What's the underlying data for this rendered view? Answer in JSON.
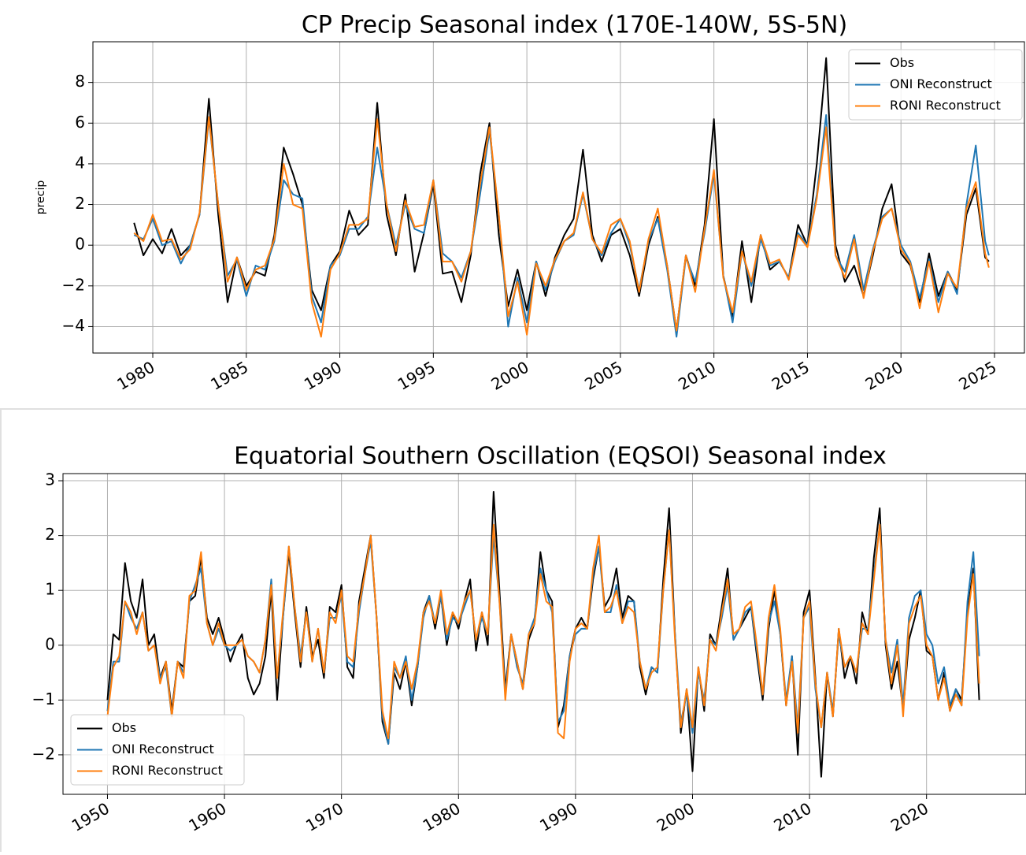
{
  "chart_data": [
    {
      "type": "line",
      "title": "CP Precip Seasonal index (170E-140W, 5S-5N)",
      "y_label": "precip",
      "xlim": [
        1976.8,
        2026.6
      ],
      "ylim": [
        -5.3,
        10.0
      ],
      "xticks": [
        1980,
        1985,
        1990,
        1995,
        2000,
        2005,
        2010,
        2015,
        2020,
        2025
      ],
      "yticks": [
        {
          "value": -4,
          "label": "−4"
        },
        {
          "value": -2,
          "label": "−2"
        },
        0,
        2,
        4,
        6,
        8
      ],
      "grid": true,
      "legend": "upper right",
      "x": [
        1979.0,
        1979.5,
        1980.0,
        1980.5,
        1981.0,
        1981.5,
        1982.0,
        1982.5,
        1983.0,
        1983.5,
        1984.0,
        1984.5,
        1985.0,
        1985.5,
        1986.0,
        1986.5,
        1987.0,
        1987.5,
        1988.0,
        1988.5,
        1989.0,
        1989.5,
        1990.0,
        1990.5,
        1991.0,
        1991.5,
        1992.0,
        1992.5,
        1993.0,
        1993.5,
        1994.0,
        1994.5,
        1995.0,
        1995.5,
        1996.0,
        1996.5,
        1997.0,
        1997.5,
        1998.0,
        1998.5,
        1999.0,
        1999.5,
        2000.0,
        2000.5,
        2001.0,
        2001.5,
        2002.0,
        2002.5,
        2003.0,
        2003.5,
        2004.0,
        2004.5,
        2005.0,
        2005.5,
        2006.0,
        2006.5,
        2007.0,
        2007.5,
        2008.0,
        2008.5,
        2009.0,
        2009.5,
        2010.0,
        2010.5,
        2011.0,
        2011.5,
        2012.0,
        2012.5,
        2013.0,
        2013.5,
        2014.0,
        2014.5,
        2015.0,
        2015.5,
        2016.0,
        2016.5,
        2017.0,
        2017.5,
        2018.0,
        2018.5,
        2019.0,
        2019.5,
        2020.0,
        2020.5,
        2021.0,
        2021.5,
        2022.0,
        2022.5,
        2023.0,
        2023.5,
        2024.0,
        2024.5,
        2024.7
      ],
      "series": [
        {
          "name": "Obs",
          "color": "#000000",
          "values": [
            1.1,
            -0.5,
            0.3,
            -0.4,
            0.8,
            -0.5,
            0.0,
            1.5,
            7.2,
            1.5,
            -2.8,
            -0.6,
            -2.0,
            -1.3,
            -1.5,
            0.5,
            4.8,
            3.5,
            2.0,
            -2.2,
            -3.2,
            -1.0,
            -0.3,
            1.7,
            0.5,
            1.0,
            7.0,
            1.5,
            -0.5,
            2.5,
            -1.3,
            0.6,
            3.0,
            -1.4,
            -1.3,
            -2.8,
            -0.5,
            3.5,
            6.0,
            0.5,
            -3.0,
            -1.2,
            -3.2,
            -0.8,
            -2.5,
            -0.6,
            0.5,
            1.3,
            4.7,
            0.5,
            -0.8,
            0.5,
            0.8,
            -0.5,
            -2.5,
            0.0,
            1.4,
            -1.0,
            -4.2,
            -0.5,
            -2.0,
            1.0,
            6.2,
            -1.5,
            -3.5,
            0.2,
            -2.8,
            0.5,
            -1.2,
            -0.8,
            -1.6,
            1.0,
            0.0,
            4.0,
            9.2,
            0.0,
            -1.8,
            -1.0,
            -2.5,
            -0.5,
            1.8,
            3.0,
            -0.4,
            -1.0,
            -2.8,
            -0.4,
            -2.5,
            -1.3,
            -2.2,
            1.5,
            2.8,
            -0.6,
            -0.8
          ]
        },
        {
          "name": "ONI Reconstruct",
          "color": "#1f77b4",
          "values": [
            0.5,
            0.3,
            1.3,
            0.0,
            0.2,
            -0.9,
            0.0,
            1.5,
            6.2,
            2.0,
            -1.5,
            -0.7,
            -2.5,
            -1.0,
            -1.2,
            0.2,
            3.2,
            2.5,
            2.3,
            -2.5,
            -3.8,
            -1.0,
            -0.5,
            0.8,
            0.8,
            1.4,
            4.8,
            2.0,
            0.0,
            2.0,
            0.8,
            0.6,
            3.2,
            -0.4,
            -0.8,
            -1.6,
            -0.3,
            2.5,
            5.6,
            1.5,
            -4.0,
            -1.6,
            -3.8,
            -0.8,
            -2.2,
            -0.8,
            0.2,
            0.5,
            2.5,
            0.3,
            -0.5,
            0.6,
            1.3,
            0.0,
            -2.2,
            0.2,
            1.3,
            -1.2,
            -4.5,
            -0.6,
            -1.8,
            0.6,
            3.5,
            -1.5,
            -3.8,
            -0.3,
            -2.0,
            0.3,
            -1.0,
            -0.8,
            -1.6,
            0.6,
            0.0,
            2.5,
            6.4,
            -0.5,
            -1.3,
            0.5,
            -2.2,
            -0.2,
            1.4,
            1.8,
            0.0,
            -0.8,
            -2.6,
            -0.7,
            -2.8,
            -1.3,
            -2.4,
            2.0,
            4.9,
            0.2,
            -0.5
          ]
        },
        {
          "name": "RONI Reconstruct",
          "color": "#ff7f0e",
          "values": [
            0.6,
            0.2,
            1.5,
            0.2,
            0.3,
            -0.7,
            -0.2,
            1.6,
            6.3,
            2.0,
            -1.8,
            -0.6,
            -2.2,
            -1.2,
            -1.0,
            0.3,
            4.0,
            2.0,
            1.8,
            -2.8,
            -4.5,
            -1.2,
            -0.4,
            1.0,
            1.0,
            1.3,
            6.2,
            2.0,
            -0.3,
            2.2,
            0.9,
            1.0,
            3.2,
            -0.8,
            -0.8,
            -1.8,
            -0.3,
            3.0,
            5.8,
            1.5,
            -3.5,
            -1.8,
            -4.4,
            -0.9,
            -2.0,
            -0.7,
            0.2,
            0.6,
            2.6,
            0.3,
            -0.4,
            1.0,
            1.3,
            0.2,
            -2.3,
            0.3,
            1.8,
            -1.0,
            -4.2,
            -0.5,
            -2.3,
            0.8,
            3.7,
            -1.6,
            -3.3,
            -0.3,
            -1.8,
            0.5,
            -0.9,
            -0.7,
            -1.7,
            0.5,
            -0.1,
            2.3,
            5.8,
            -0.5,
            -1.6,
            0.3,
            -2.6,
            -0.3,
            1.3,
            1.8,
            -0.2,
            -0.9,
            -3.1,
            -0.8,
            -3.3,
            -1.4,
            -2.1,
            1.8,
            3.1,
            -0.4,
            -1.1
          ]
        }
      ]
    },
    {
      "type": "line",
      "title": "Equatorial Southern Oscillation (EQSOI) Seasonal index",
      "xlim": [
        1946.2,
        2028.5
      ],
      "ylim": [
        -2.72,
        3.13
      ],
      "xticks": [
        1950,
        1960,
        1970,
        1980,
        1990,
        2000,
        2010,
        2020
      ],
      "yticks": [
        {
          "value": -2,
          "label": "−2"
        },
        {
          "value": -1,
          "label": "−1"
        },
        0,
        1,
        2,
        3
      ],
      "grid": true,
      "legend": "lower left",
      "x": [
        1950.0,
        1950.5,
        1951.0,
        1951.5,
        1952.0,
        1952.5,
        1953.0,
        1953.5,
        1954.0,
        1954.5,
        1955.0,
        1955.5,
        1956.0,
        1956.5,
        1957.0,
        1957.5,
        1958.0,
        1958.5,
        1959.0,
        1959.5,
        1960.0,
        1960.5,
        1961.0,
        1961.5,
        1962.0,
        1962.5,
        1963.0,
        1963.5,
        1964.0,
        1964.5,
        1965.0,
        1965.5,
        1966.0,
        1966.5,
        1967.0,
        1967.5,
        1968.0,
        1968.5,
        1969.0,
        1969.5,
        1970.0,
        1970.5,
        1971.0,
        1971.5,
        1972.0,
        1972.5,
        1973.0,
        1973.5,
        1974.0,
        1974.5,
        1975.0,
        1975.5,
        1976.0,
        1976.5,
        1977.0,
        1977.5,
        1978.0,
        1978.5,
        1979.0,
        1979.5,
        1980.0,
        1980.5,
        1981.0,
        1981.5,
        1982.0,
        1982.5,
        1983.0,
        1983.5,
        1984.0,
        1984.5,
        1985.0,
        1985.5,
        1986.0,
        1986.5,
        1987.0,
        1987.5,
        1988.0,
        1988.5,
        1989.0,
        1989.5,
        1990.0,
        1990.5,
        1991.0,
        1991.5,
        1992.0,
        1992.5,
        1993.0,
        1993.5,
        1994.0,
        1994.5,
        1995.0,
        1995.5,
        1996.0,
        1996.5,
        1997.0,
        1997.5,
        1998.0,
        1998.5,
        1999.0,
        1999.5,
        2000.0,
        2000.5,
        2001.0,
        2001.5,
        2002.0,
        2002.5,
        2003.0,
        2003.5,
        2004.0,
        2004.5,
        2005.0,
        2005.5,
        2006.0,
        2006.5,
        2007.0,
        2007.5,
        2008.0,
        2008.5,
        2009.0,
        2009.5,
        2010.0,
        2010.5,
        2011.0,
        2011.5,
        2012.0,
        2012.5,
        2013.0,
        2013.5,
        2014.0,
        2014.5,
        2015.0,
        2015.5,
        2016.0,
        2016.5,
        2017.0,
        2017.5,
        2018.0,
        2018.5,
        2019.0,
        2019.5,
        2020.0,
        2020.5,
        2021.0,
        2021.5,
        2022.0,
        2022.5,
        2023.0,
        2023.5,
        2024.0,
        2024.5
      ],
      "series": [
        {
          "name": "Obs",
          "color": "#000000",
          "values": [
            -1.0,
            0.2,
            0.1,
            1.5,
            0.8,
            0.5,
            1.2,
            0.0,
            0.2,
            -0.6,
            -0.3,
            -1.2,
            -0.3,
            -0.4,
            0.8,
            0.9,
            1.6,
            0.5,
            0.2,
            0.5,
            0.1,
            -0.3,
            0.0,
            0.2,
            -0.6,
            -0.9,
            -0.7,
            -0.2,
            1.0,
            -1.0,
            0.5,
            1.7,
            0.6,
            -0.4,
            0.7,
            -0.2,
            0.1,
            -0.6,
            0.7,
            0.6,
            1.1,
            -0.4,
            -0.6,
            0.8,
            1.4,
            2.0,
            0.5,
            -1.4,
            -1.8,
            -0.5,
            -0.8,
            -0.3,
            -1.1,
            -0.4,
            0.6,
            0.9,
            0.3,
            0.9,
            0.0,
            0.6,
            0.3,
            0.8,
            1.2,
            -0.1,
            0.6,
            0.0,
            2.8,
            1.0,
            -0.8,
            0.2,
            -0.3,
            -0.8,
            0.1,
            0.4,
            1.7,
            1.0,
            0.8,
            -1.5,
            -1.1,
            -0.2,
            0.3,
            0.5,
            0.3,
            1.2,
            1.8,
            0.7,
            0.9,
            1.4,
            0.5,
            0.9,
            0.8,
            -0.4,
            -0.9,
            -0.4,
            -0.5,
            1.2,
            2.5,
            0.2,
            -1.6,
            -0.8,
            -2.3,
            -0.4,
            -1.2,
            0.2,
            0.0,
            0.7,
            1.4,
            0.1,
            0.3,
            0.5,
            0.7,
            -0.2,
            -1.0,
            0.3,
            1.0,
            0.2,
            -1.1,
            -0.2,
            -2.0,
            0.6,
            1.0,
            -0.6,
            -2.4,
            -0.5,
            -1.3,
            0.3,
            -0.6,
            -0.2,
            -0.7,
            0.6,
            0.2,
            1.6,
            2.5,
            0.0,
            -0.8,
            -0.3,
            -1.2,
            0.1,
            0.5,
            1.0,
            -0.1,
            -0.2,
            -1.0,
            -0.5,
            -1.2,
            -0.8,
            -1.0,
            0.6,
            1.4,
            -1.0
          ]
        },
        {
          "name": "ONI Reconstruct",
          "color": "#1f77b4",
          "values": [
            -1.2,
            -0.3,
            -0.3,
            0.8,
            0.5,
            0.3,
            0.6,
            -0.1,
            0.0,
            -0.6,
            -0.4,
            -1.3,
            -0.3,
            -0.5,
            0.8,
            1.1,
            1.4,
            0.4,
            0.0,
            0.3,
            0.0,
            -0.1,
            0.0,
            0.1,
            -0.2,
            -0.3,
            -0.5,
            0.1,
            1.2,
            -0.6,
            0.5,
            1.8,
            0.7,
            -0.2,
            0.6,
            -0.3,
            0.3,
            -0.5,
            0.5,
            0.5,
            0.9,
            -0.3,
            -0.4,
            0.6,
            1.3,
            1.9,
            0.5,
            -1.3,
            -1.8,
            -0.4,
            -0.6,
            -0.2,
            -1.0,
            -0.4,
            0.5,
            0.9,
            0.4,
            0.9,
            0.1,
            0.5,
            0.4,
            0.7,
            1.0,
            0.1,
            0.5,
            0.2,
            2.0,
            0.8,
            -0.9,
            0.2,
            -0.4,
            -0.7,
            0.2,
            0.5,
            1.4,
            1.0,
            0.6,
            -1.4,
            -1.2,
            -0.2,
            0.2,
            0.3,
            0.3,
            1.3,
            1.8,
            0.6,
            0.6,
            1.1,
            0.4,
            0.8,
            0.8,
            -0.3,
            -0.8,
            -0.4,
            -0.5,
            1.0,
            2.1,
            0.2,
            -1.4,
            -0.9,
            -1.6,
            -0.5,
            -1.0,
            0.1,
            0.0,
            0.5,
            1.1,
            0.1,
            0.3,
            0.6,
            0.7,
            -0.1,
            -0.9,
            0.4,
            0.8,
            0.2,
            -1.0,
            -0.2,
            -1.5,
            0.5,
            0.7,
            -0.8,
            -1.5,
            -0.5,
            -1.2,
            0.2,
            -0.4,
            -0.2,
            -0.5,
            0.3,
            0.3,
            1.3,
            2.2,
            0.1,
            -0.5,
            0.1,
            -1.1,
            0.5,
            0.9,
            1.0,
            0.2,
            0.0,
            -0.7,
            -0.4,
            -1.1,
            -0.8,
            -1.1,
            0.8,
            1.7,
            -0.2
          ]
        },
        {
          "name": "RONI Reconstruct",
          "color": "#ff7f0e",
          "values": [
            -1.3,
            -0.4,
            -0.2,
            0.8,
            0.6,
            0.2,
            0.6,
            -0.1,
            0.0,
            -0.7,
            -0.3,
            -1.3,
            -0.3,
            -0.6,
            0.9,
            1.0,
            1.7,
            0.4,
            0.0,
            0.4,
            0.0,
            0.0,
            0.0,
            0.1,
            -0.2,
            -0.3,
            -0.5,
            0.1,
            1.1,
            -0.6,
            0.6,
            1.8,
            0.7,
            -0.3,
            0.6,
            -0.3,
            0.3,
            -0.5,
            0.6,
            0.4,
            1.0,
            -0.2,
            -0.3,
            0.7,
            1.3,
            2.0,
            0.5,
            -1.2,
            -1.7,
            -0.3,
            -0.6,
            -0.3,
            -0.8,
            -0.3,
            0.6,
            0.8,
            0.4,
            1.0,
            0.2,
            0.6,
            0.4,
            0.8,
            1.0,
            0.1,
            0.6,
            0.2,
            2.2,
            0.8,
            -1.0,
            0.2,
            -0.3,
            -0.8,
            0.2,
            0.4,
            1.3,
            0.8,
            0.7,
            -1.6,
            -1.7,
            -0.3,
            0.3,
            0.4,
            0.3,
            1.4,
            2.0,
            0.6,
            0.7,
            1.0,
            0.4,
            0.7,
            0.6,
            -0.3,
            -0.8,
            -0.5,
            -0.4,
            1.0,
            2.1,
            0.1,
            -1.5,
            -0.8,
            -1.5,
            -0.4,
            -1.1,
            0.1,
            -0.1,
            0.6,
            1.2,
            0.2,
            0.3,
            0.7,
            0.8,
            0.0,
            -0.9,
            0.5,
            1.1,
            0.3,
            -1.1,
            -0.3,
            -1.6,
            0.5,
            0.8,
            -0.7,
            -1.5,
            -0.5,
            -1.3,
            0.3,
            -0.4,
            -0.2,
            -0.5,
            0.4,
            0.2,
            1.2,
            2.2,
            0.1,
            -0.7,
            0.0,
            -1.3,
            0.4,
            0.7,
            0.9,
            0.0,
            -0.2,
            -1.0,
            -0.6,
            -1.2,
            -0.9,
            -1.1,
            0.5,
            1.3,
            -0.7
          ]
        }
      ]
    }
  ]
}
